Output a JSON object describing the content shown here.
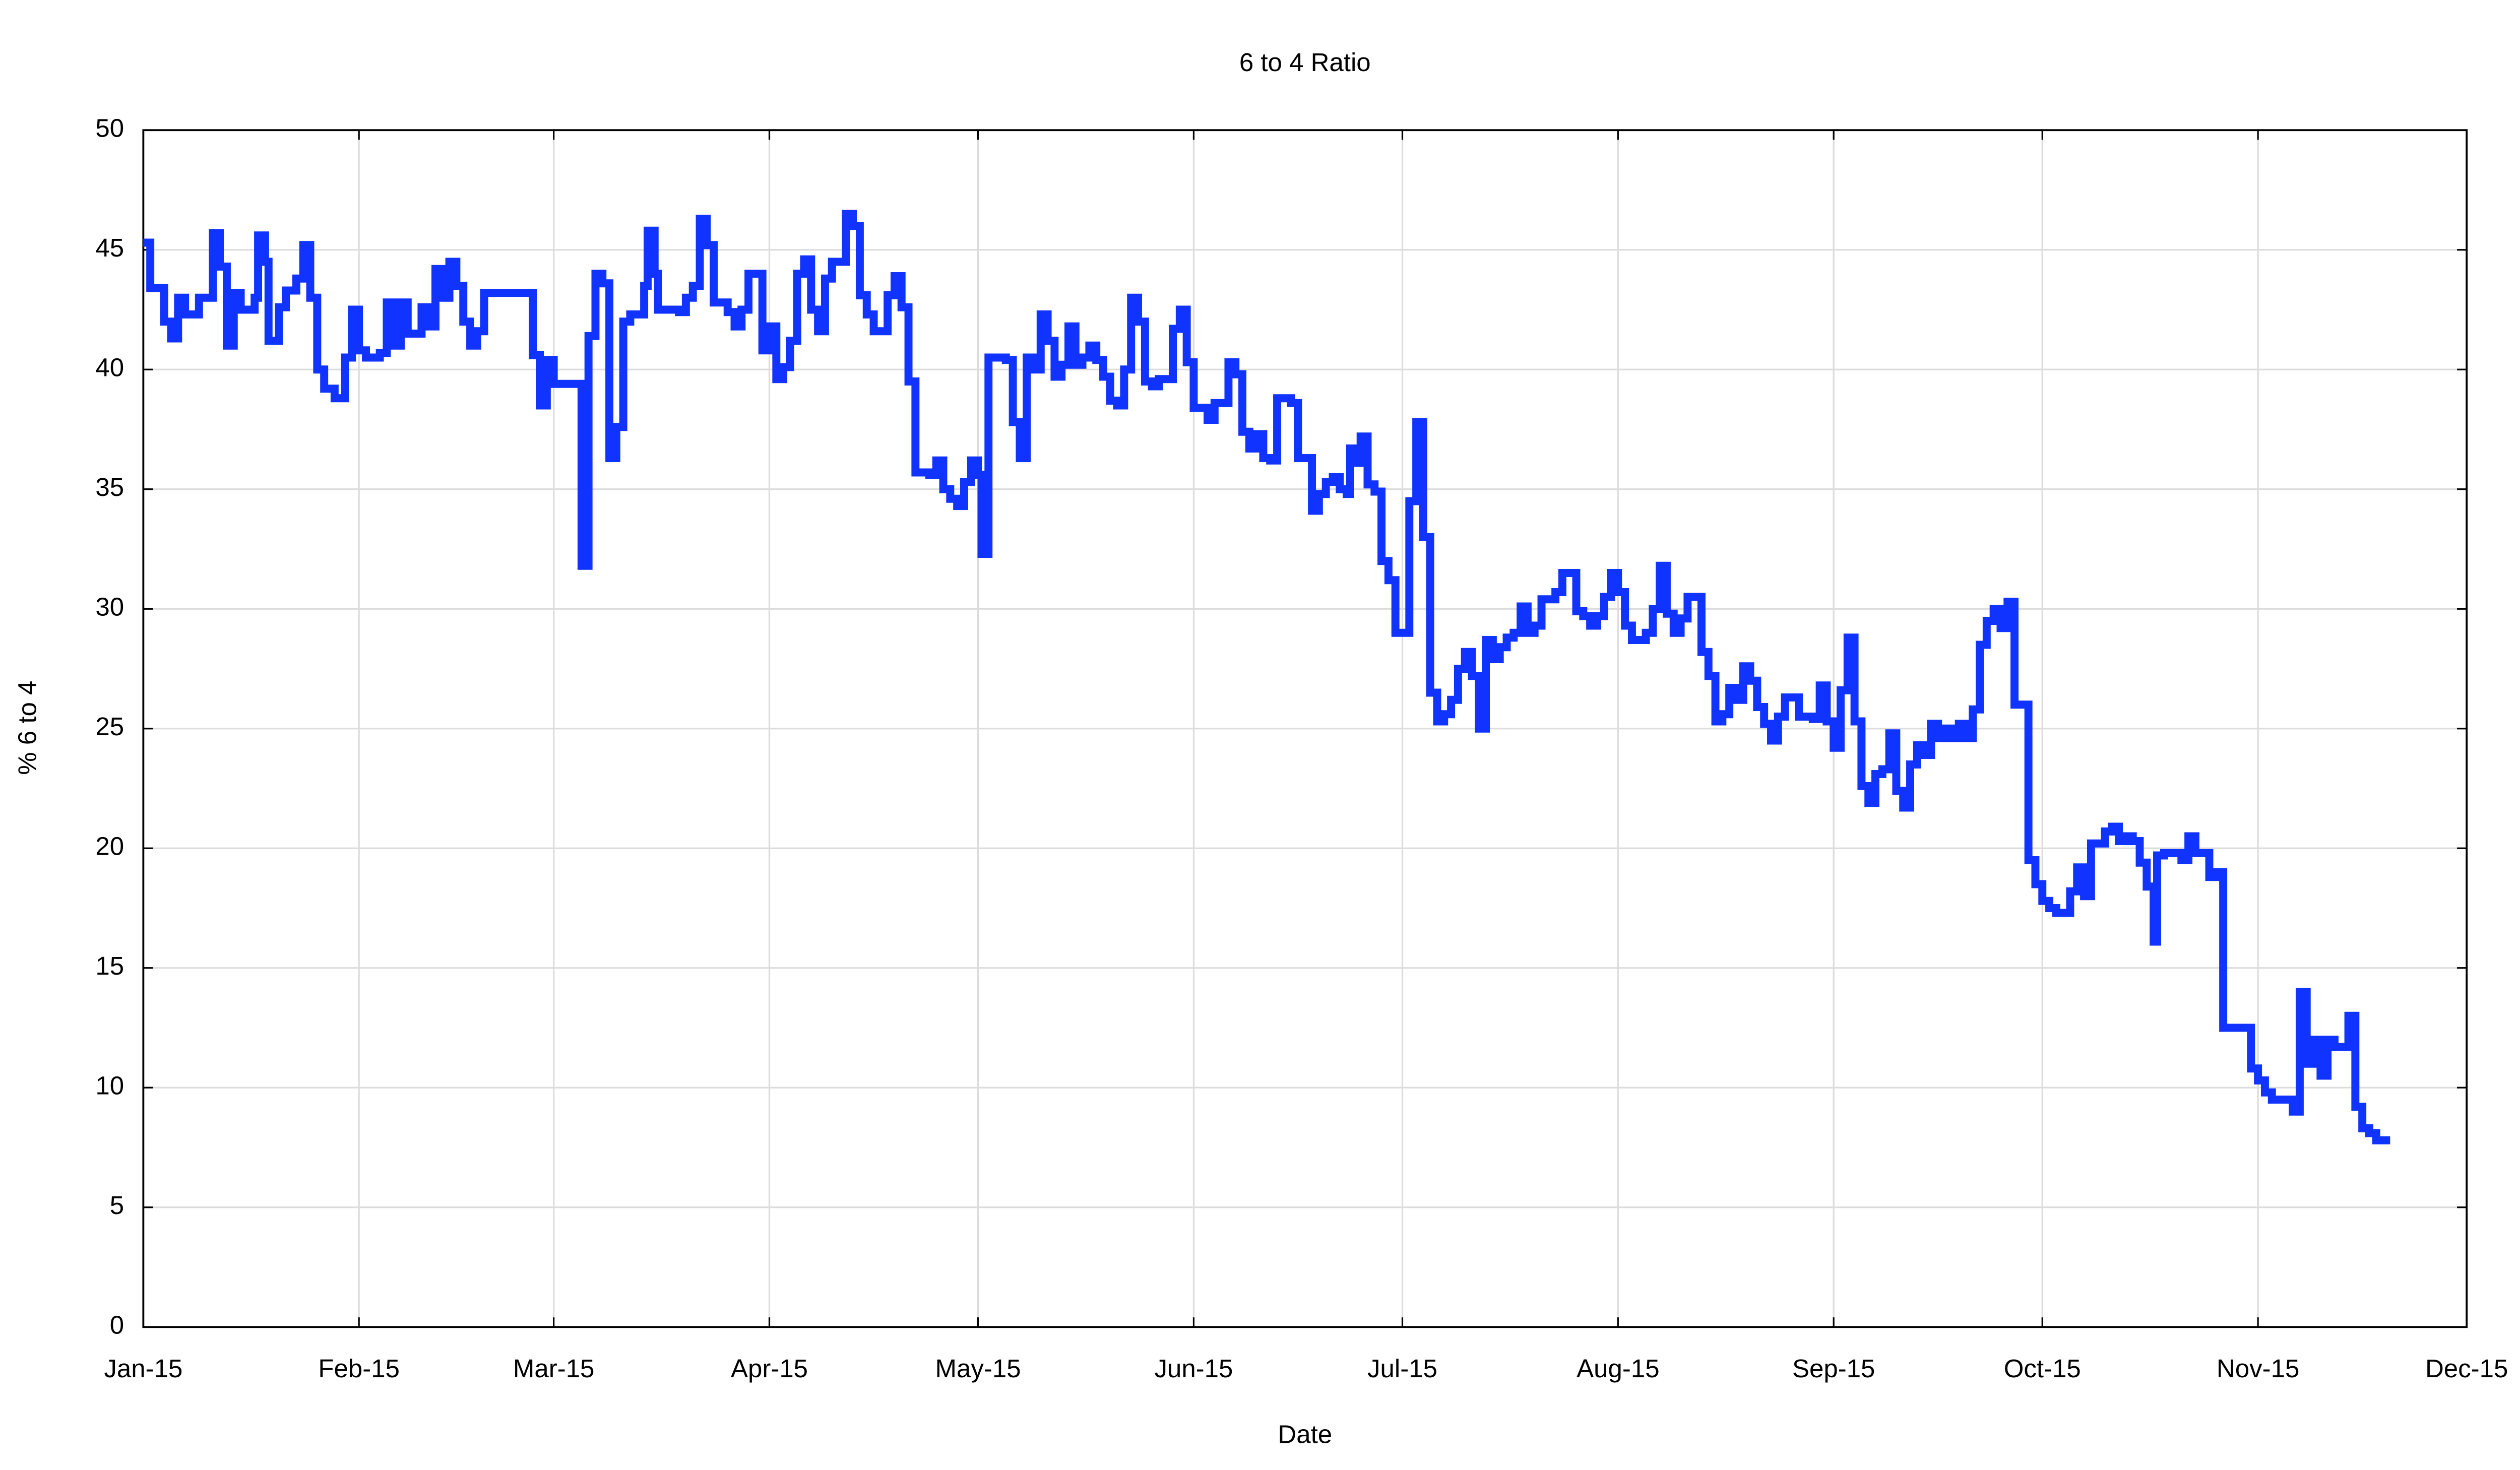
{
  "chart_data": {
    "type": "line",
    "step": true,
    "title": "6 to 4 Ratio",
    "xlabel": "Date",
    "ylabel": "% 6 to 4",
    "xlim": [
      0,
      334
    ],
    "ylim": [
      0,
      50
    ],
    "xticks": [
      {
        "value": 0,
        "label": "Jan-15"
      },
      {
        "value": 31,
        "label": "Feb-15"
      },
      {
        "value": 59,
        "label": "Mar-15"
      },
      {
        "value": 90,
        "label": "Apr-15"
      },
      {
        "value": 120,
        "label": "May-15"
      },
      {
        "value": 151,
        "label": "Jun-15"
      },
      {
        "value": 181,
        "label": "Jul-15"
      },
      {
        "value": 212,
        "label": "Aug-15"
      },
      {
        "value": 243,
        "label": "Sep-15"
      },
      {
        "value": 273,
        "label": "Oct-15"
      },
      {
        "value": 304,
        "label": "Nov-15"
      },
      {
        "value": 334,
        "label": "Dec-15"
      }
    ],
    "yticks": [
      0,
      5,
      10,
      15,
      20,
      25,
      30,
      35,
      40,
      45,
      50
    ],
    "grid": true,
    "x": [
      0,
      1,
      3,
      4,
      5,
      6,
      8,
      10,
      11,
      12,
      13,
      14,
      16,
      16.5,
      17.5,
      18,
      19.5,
      20.5,
      22,
      23,
      24,
      25,
      26,
      27.5,
      29,
      30,
      31,
      32,
      34,
      35,
      36,
      37,
      38,
      40,
      41,
      42,
      43,
      44,
      45,
      46,
      47,
      48,
      49,
      56,
      57,
      58,
      59,
      63,
      64,
      65,
      66,
      67,
      68,
      69,
      70,
      72,
      72.5,
      73.5,
      74,
      77,
      78,
      79,
      80,
      81,
      82,
      84,
      85,
      86,
      87,
      89,
      90,
      91,
      92,
      93,
      94,
      95,
      96,
      97,
      98,
      99,
      101,
      102,
      103,
      104,
      105,
      107,
      108,
      109,
      110,
      111,
      113,
      114,
      115,
      116,
      117,
      118,
      119,
      120,
      120.5,
      121.5,
      124,
      125,
      126,
      127,
      128,
      129,
      130,
      131,
      132,
      133,
      134,
      135,
      136,
      137,
      138,
      139,
      140,
      141,
      142,
      143,
      144,
      145,
      146,
      148,
      149,
      150,
      151,
      152,
      153,
      154,
      156,
      157,
      158,
      159,
      160,
      161,
      162,
      163,
      165,
      166,
      168,
      169,
      170,
      171,
      172,
      173,
      173.5,
      174.5,
      175,
      176,
      177,
      178,
      179,
      180,
      182,
      183,
      184,
      185,
      186,
      187,
      188,
      189,
      190,
      191,
      192,
      193,
      194,
      195,
      196,
      197,
      198,
      199,
      200,
      201,
      203,
      204,
      206,
      207,
      208,
      209,
      210,
      211,
      212,
      213,
      214,
      216,
      217,
      218,
      219,
      220,
      221,
      222,
      224,
      225,
      226,
      227,
      228,
      229,
      230,
      231,
      232,
      233,
      234,
      235,
      236,
      238,
      240,
      241,
      242,
      243,
      244,
      245,
      246,
      247,
      248,
      249,
      250,
      251,
      252,
      253,
      254,
      255,
      256,
      257,
      258,
      259,
      260,
      261,
      262,
      263,
      264,
      265,
      266,
      267,
      268,
      269,
      271,
      272,
      273,
      274,
      275,
      277,
      278,
      279,
      280,
      282,
      283,
      284,
      285,
      286,
      287,
      288,
      289,
      289.5,
      290.5,
      293,
      294,
      295,
      297,
      298,
      299,
      303,
      304,
      305,
      306,
      307,
      309,
      310,
      311,
      312,
      313,
      314,
      315,
      317,
      318,
      319,
      320,
      321,
      323
    ],
    "series": [
      {
        "name": "6 to 4",
        "color": "#1133ff",
        "values": [
          45.3,
          43.4,
          42,
          41.3,
          43,
          42.3,
          43,
          45.7,
          44.3,
          41,
          43.2,
          42.5,
          43,
          45.6,
          44.5,
          41.2,
          42.6,
          43.3,
          43.8,
          45.2,
          43,
          40,
          39.2,
          38.8,
          40.5,
          42.5,
          40.8,
          40.5,
          40.7,
          42.8,
          41,
          42.8,
          41.5,
          42.6,
          41.8,
          44.2,
          43,
          44.5,
          43.5,
          42,
          41,
          41.6,
          43.2,
          40.6,
          38.5,
          40.4,
          39.4,
          31.8,
          41.4,
          44,
          43.6,
          36.3,
          37.6,
          42,
          42.3,
          43.5,
          45.8,
          44,
          42.5,
          42.4,
          43,
          43.5,
          46.3,
          45.2,
          42.8,
          42.4,
          41.8,
          42.5,
          44,
          40.8,
          41.8,
          39.6,
          40.1,
          41.2,
          44,
          44.6,
          42.5,
          41.6,
          43.8,
          44.5,
          46.5,
          46,
          43.1,
          42.3,
          41.6,
          43.1,
          43.9,
          42.6,
          39.5,
          35.7,
          35.6,
          36.2,
          35,
          34.6,
          34.3,
          35.3,
          36.2,
          35.6,
          32.3,
          40.5,
          40.4,
          37.8,
          36.3,
          40.5,
          40,
          42.3,
          41.2,
          39.7,
          40.2,
          41.8,
          40.2,
          40.5,
          41,
          40.4,
          39.7,
          38.7,
          38.5,
          40,
          43,
          42,
          39.5,
          39.3,
          39.6,
          41.7,
          42.5,
          40.3,
          38.4,
          38.4,
          37.9,
          38.6,
          40.3,
          39.8,
          37.4,
          36.7,
          37.3,
          36.3,
          36.2,
          38.8,
          38.6,
          36.3,
          34.1,
          34.8,
          35.3,
          35.5,
          35,
          34.8,
          36.7,
          36.1,
          37.2,
          35.2,
          34.9,
          32,
          31.2,
          29,
          34.5,
          37.8,
          33,
          26.5,
          25.3,
          25.6,
          26.2,
          27.5,
          28.2,
          27.2,
          25,
          28.7,
          27.9,
          28.4,
          28.8,
          29,
          30.1,
          29,
          29.3,
          30.4,
          30.7,
          31.5,
          29.9,
          29.7,
          29.3,
          29.7,
          30.5,
          31.5,
          30.7,
          29.3,
          28.7,
          29,
          30,
          31.8,
          29.8,
          29,
          29.6,
          30.5,
          28.2,
          27.2,
          25.3,
          25.6,
          26.7,
          26.2,
          27.6,
          27,
          25.9,
          25.2,
          24.5,
          25.5,
          26.3,
          25.5,
          25.4,
          26.8,
          25.3,
          24.2,
          26.6,
          28.8,
          25.3,
          22.6,
          21.9,
          23.1,
          23.3,
          24.8,
          22.4,
          21.7,
          23.5,
          24.3,
          23.9,
          25.2,
          24.6,
          25,
          24.6,
          25.2,
          24.6,
          25.8,
          28.5,
          29.5,
          30,
          29.2,
          30.3,
          26,
          19.5,
          18.5,
          17.8,
          17.5,
          17.3,
          18.2,
          19.2,
          18,
          20.2,
          20.7,
          20.9,
          20.3,
          20.5,
          20.3,
          19.4,
          18.4,
          16.1,
          19.7,
          19.8,
          19.5,
          20.5,
          19.8,
          18.8,
          19,
          12.5,
          10.8,
          10.3,
          9.8,
          9.5,
          9.5,
          9,
          14,
          11,
          12,
          10.5,
          12,
          11.7,
          13,
          9.2,
          8.3,
          8.1,
          7.8,
          7.8
        ]
      }
    ]
  }
}
